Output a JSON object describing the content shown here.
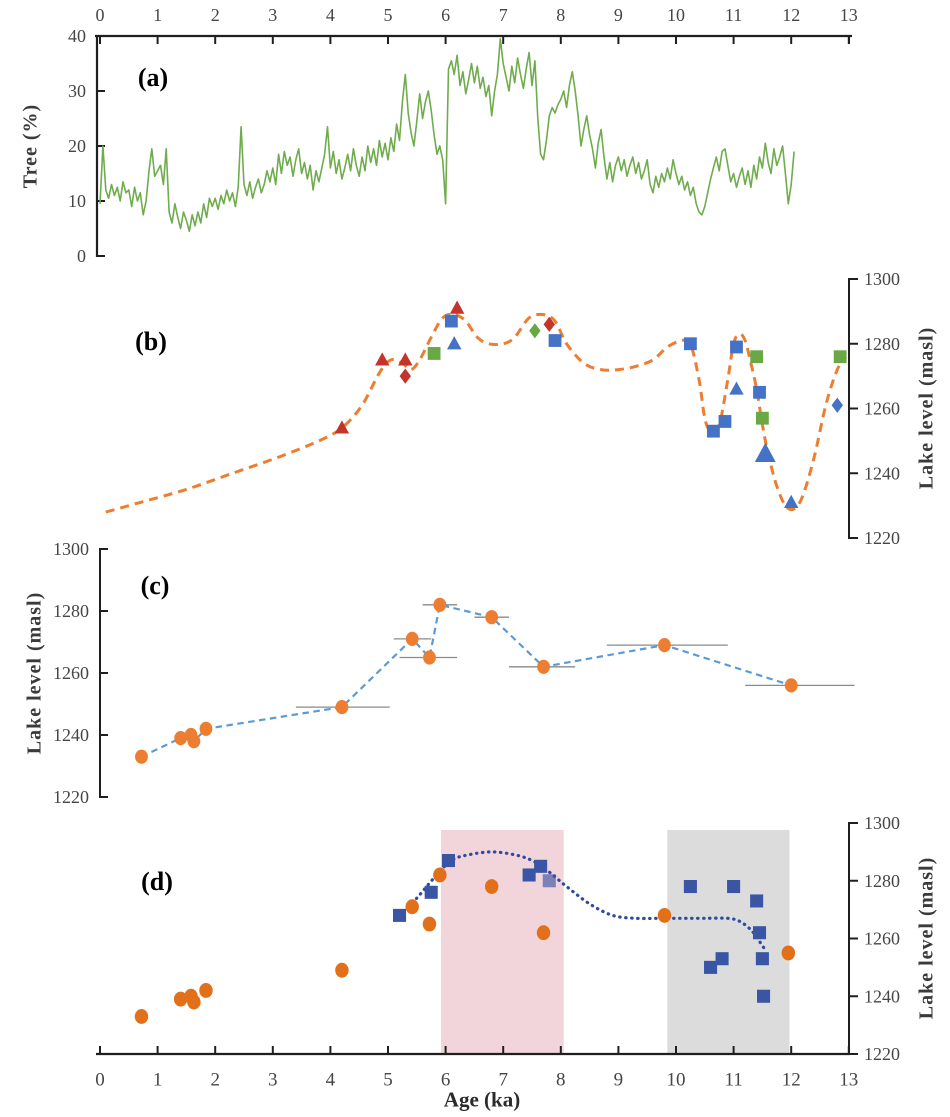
{
  "figure": {
    "panel_labels": {
      "a": "(a)",
      "b": "(b)",
      "c": "(c)",
      "d": "(d)"
    },
    "axis_titles": {
      "tree": "Tree (%)",
      "lake_b": "Lake level (masl)",
      "lake_c": "Lake level (masl)",
      "lake_d": "Lake level (masl)",
      "age": "Age (ka)"
    }
  },
  "colors": {
    "tree_line": "#6FAC4D",
    "orange_curve": "#ED7D31",
    "red_marker": "#C3342B",
    "blue_marker": "#4472C4",
    "green_marker": "#69A844",
    "c_line": "#5B9BD5",
    "c_marker": "#ED7D31",
    "errorbar": "#8a8a8a",
    "d_dotted": "#2F4B9E",
    "d_square": "#3A55A4",
    "d_circle": "#E2701B",
    "pink_band": "#F2D5DA",
    "gray_band": "#DCDCDC",
    "axis": "#1f1f1f",
    "tick_text": "#464646"
  },
  "chart_data": [
    {
      "panel": "a",
      "type": "line",
      "ylabel": "Tree (%)",
      "xlabel_top": "Age (ka)",
      "xlim": [
        0,
        13
      ],
      "ylim": [
        0,
        40
      ],
      "x_axis": "top",
      "y_axis": "left",
      "xticks": [
        0,
        1,
        2,
        3,
        4,
        5,
        6,
        7,
        8,
        9,
        10,
        11,
        12,
        13
      ],
      "yticks": [
        0,
        10,
        20,
        30,
        40
      ],
      "series": [
        {
          "name": "tree_percent",
          "x_start": 0,
          "x_step": 0.05,
          "values": [
            9.5,
            20,
            12,
            10.5,
            13,
            11,
            12.5,
            10,
            13.5,
            11.5,
            12,
            9,
            12.5,
            10,
            11.5,
            7.5,
            10,
            15.5,
            19.5,
            14.5,
            15.5,
            16.5,
            13,
            19.5,
            8,
            6,
            9.5,
            7,
            5,
            8,
            6.5,
            4.5,
            7.5,
            5.5,
            8,
            6,
            9.5,
            7,
            10.5,
            9,
            10.5,
            8.5,
            11,
            9.5,
            12,
            10,
            11.5,
            9,
            12.5,
            23.5,
            13,
            11,
            13.5,
            10.5,
            12.5,
            14,
            11.5,
            13,
            15.5,
            13.5,
            16,
            13,
            18.5,
            15,
            19,
            16.5,
            18,
            14.5,
            17.5,
            19.5,
            15,
            17,
            14,
            16.5,
            12,
            15.5,
            13.5,
            16,
            18.5,
            23.5,
            16,
            19,
            15,
            17.5,
            14,
            16,
            18.5,
            15.5,
            19.5,
            16.5,
            14.5,
            18,
            15.5,
            20,
            17,
            19.5,
            16.5,
            21,
            18,
            20.5,
            17.5,
            21.5,
            19,
            24,
            21,
            28,
            33,
            26,
            22.5,
            20,
            24.5,
            29.5,
            25,
            28,
            30,
            26.5,
            22,
            18.5,
            20,
            17.5,
            9.5,
            34,
            35.5,
            33,
            36.5,
            31,
            33.5,
            29.5,
            32,
            35,
            31.5,
            34.5,
            30.5,
            32.5,
            29,
            31,
            25.5,
            30,
            33,
            39.5,
            35,
            32.5,
            30,
            34.5,
            31.5,
            36,
            33,
            30.5,
            34,
            37,
            31,
            35.5,
            25,
            18.5,
            17.5,
            21,
            25.5,
            27,
            26,
            27.5,
            28.5,
            30,
            27,
            31,
            33.5,
            30,
            25.5,
            20,
            23,
            25.5,
            22,
            19.5,
            16,
            20.5,
            23,
            18,
            14,
            17,
            13.5,
            16.5,
            18,
            15.5,
            17.5,
            14.5,
            16.5,
            18,
            15,
            17,
            14,
            15.5,
            17.5,
            13,
            11.5,
            14.5,
            12.5,
            15,
            13.5,
            16,
            14,
            17.5,
            15,
            13,
            14.5,
            12,
            13.5,
            11,
            12.5,
            9.5,
            8,
            7.5,
            9,
            11.5,
            14,
            16,
            18,
            15.5,
            19,
            19.5,
            16.5,
            13.5,
            15,
            12.5,
            14.5,
            16,
            13,
            15.5,
            12.5,
            16.5,
            14,
            18,
            16,
            20.5,
            17,
            15,
            19.5,
            16.5,
            18,
            20,
            15,
            9.5,
            13,
            19
          ]
        }
      ]
    },
    {
      "panel": "b",
      "type": "scatter",
      "ylabel": "Lake level (masl)",
      "xlim": [
        0,
        13
      ],
      "ylim": [
        1220,
        1300
      ],
      "y_axis": "right",
      "yticks": [
        1220,
        1240,
        1260,
        1280,
        1300
      ],
      "curve": {
        "name": "lake-level-reconstruction",
        "style": "dashed",
        "color_key": "orange_curve",
        "points": [
          [
            0.1,
            1228
          ],
          [
            0.7,
            1231
          ],
          [
            1.5,
            1235
          ],
          [
            2.3,
            1240
          ],
          [
            3.1,
            1245
          ],
          [
            3.8,
            1250
          ],
          [
            4.2,
            1254
          ],
          [
            4.55,
            1261
          ],
          [
            4.85,
            1271
          ],
          [
            5.05,
            1275
          ],
          [
            5.25,
            1274
          ],
          [
            5.4,
            1272
          ],
          [
            5.55,
            1275
          ],
          [
            5.75,
            1282
          ],
          [
            5.95,
            1288
          ],
          [
            6.15,
            1289
          ],
          [
            6.35,
            1287
          ],
          [
            6.55,
            1282
          ],
          [
            6.75,
            1280
          ],
          [
            7.0,
            1280
          ],
          [
            7.2,
            1282
          ],
          [
            7.45,
            1288
          ],
          [
            7.7,
            1289
          ],
          [
            7.9,
            1287
          ],
          [
            8.1,
            1280
          ],
          [
            8.4,
            1274
          ],
          [
            8.7,
            1272
          ],
          [
            9.0,
            1272
          ],
          [
            9.3,
            1273
          ],
          [
            9.6,
            1275
          ],
          [
            9.85,
            1279
          ],
          [
            10.1,
            1281
          ],
          [
            10.25,
            1280
          ],
          [
            10.4,
            1269
          ],
          [
            10.5,
            1257
          ],
          [
            10.6,
            1253
          ],
          [
            10.75,
            1255
          ],
          [
            10.9,
            1269
          ],
          [
            11.0,
            1280
          ],
          [
            11.1,
            1283
          ],
          [
            11.2,
            1281
          ],
          [
            11.3,
            1274
          ],
          [
            11.4,
            1266
          ],
          [
            11.5,
            1255
          ],
          [
            11.6,
            1246
          ],
          [
            11.75,
            1236
          ],
          [
            11.9,
            1230
          ],
          [
            12.05,
            1229
          ],
          [
            12.2,
            1233
          ],
          [
            12.4,
            1245
          ],
          [
            12.6,
            1261
          ],
          [
            12.8,
            1272
          ],
          [
            12.95,
            1276
          ]
        ]
      },
      "marker_series": [
        {
          "name": "red-triangle",
          "shape": "triangle",
          "color_key": "red_marker",
          "points": [
            [
              4.2,
              1254
            ],
            [
              4.9,
              1275
            ],
            [
              5.3,
              1275
            ],
            [
              6.2,
              1291
            ]
          ]
        },
        {
          "name": "red-diamond",
          "shape": "diamond",
          "color_key": "red_marker",
          "points": [
            [
              5.3,
              1270
            ],
            [
              7.8,
              1286
            ]
          ]
        },
        {
          "name": "green-square",
          "shape": "square",
          "color_key": "green_marker",
          "points": [
            [
              5.8,
              1277
            ],
            [
              11.4,
              1276
            ],
            [
              11.5,
              1257
            ],
            [
              12.85,
              1276
            ]
          ]
        },
        {
          "name": "green-diamond",
          "shape": "diamond",
          "color_key": "green_marker",
          "points": [
            [
              7.55,
              1284
            ]
          ]
        },
        {
          "name": "blue-square",
          "shape": "square",
          "color_key": "blue_marker",
          "points": [
            [
              6.1,
              1287
            ],
            [
              7.9,
              1281
            ],
            [
              10.25,
              1280
            ],
            [
              10.65,
              1253
            ],
            [
              10.85,
              1256
            ],
            [
              11.05,
              1279
            ],
            [
              11.45,
              1265
            ]
          ]
        },
        {
          "name": "blue-triangle",
          "shape": "triangle",
          "color_key": "blue_marker",
          "points": [
            [
              6.15,
              1280
            ],
            [
              11.05,
              1266
            ],
            [
              11.55,
              1246,
              1.45
            ],
            [
              12.0,
              1231
            ]
          ]
        },
        {
          "name": "blue-diamond",
          "shape": "diamond",
          "color_key": "blue_marker",
          "points": [
            [
              12.8,
              1261
            ]
          ]
        }
      ]
    },
    {
      "panel": "c",
      "type": "scatter",
      "ylabel": "Lake level (masl)",
      "xlim": [
        0,
        13
      ],
      "ylim": [
        1220,
        1300
      ],
      "y_axis": "left",
      "yticks": [
        1220,
        1240,
        1260,
        1280,
        1300
      ],
      "line_style": "dashed",
      "points": [
        {
          "age": 0.72,
          "level": 1233
        },
        {
          "age": 1.4,
          "level": 1239
        },
        {
          "age": 1.58,
          "level": 1240
        },
        {
          "age": 1.63,
          "level": 1238
        },
        {
          "age": 1.84,
          "level": 1242
        },
        {
          "age": 4.2,
          "level": 1249,
          "bar": [
            3.4,
            5.03
          ]
        },
        {
          "age": 5.42,
          "level": 1271,
          "bar": [
            5.1,
            5.75
          ]
        },
        {
          "age": 5.72,
          "level": 1265,
          "bar": [
            5.2,
            6.2
          ]
        },
        {
          "age": 5.9,
          "level": 1282,
          "bar": [
            5.6,
            6.2
          ]
        },
        {
          "age": 6.8,
          "level": 1278,
          "bar": [
            6.5,
            7.1
          ]
        },
        {
          "age": 7.7,
          "level": 1262,
          "bar": [
            7.1,
            8.25
          ]
        },
        {
          "age": 9.8,
          "level": 1269,
          "bar": [
            8.8,
            10.9
          ]
        },
        {
          "age": 12.0,
          "level": 1256,
          "bar": [
            11.2,
            13.1
          ]
        }
      ]
    },
    {
      "panel": "d",
      "type": "scatter",
      "xlabel": "Age (ka)",
      "ylabel": "Lake level (masl)",
      "xlim": [
        0,
        13
      ],
      "ylim": [
        1220,
        1300
      ],
      "x_axis": "bottom",
      "y_axis": "right",
      "xticks": [
        0,
        1,
        2,
        3,
        4,
        5,
        6,
        7,
        8,
        9,
        10,
        11,
        12,
        13
      ],
      "yticks": [
        1220,
        1240,
        1260,
        1280,
        1300
      ],
      "bands": [
        {
          "name": "pink-band",
          "color_key": "pink_band",
          "from_age": 5.92,
          "to_age": 8.05
        },
        {
          "name": "gray-band",
          "color_key": "gray_band",
          "from_age": 9.85,
          "to_age": 11.97
        }
      ],
      "dotted_curve": {
        "name": "lake-level-trend",
        "color_key": "d_dotted",
        "points": [
          [
            5.2,
            1268
          ],
          [
            5.5,
            1274
          ],
          [
            5.8,
            1281
          ],
          [
            6.1,
            1287
          ],
          [
            6.4,
            1289
          ],
          [
            6.8,
            1290
          ],
          [
            7.2,
            1289
          ],
          [
            7.5,
            1287
          ],
          [
            7.8,
            1283
          ],
          [
            8.1,
            1278
          ],
          [
            8.5,
            1272
          ],
          [
            8.9,
            1268
          ],
          [
            9.3,
            1267
          ],
          [
            9.7,
            1267
          ],
          [
            10.1,
            1267
          ],
          [
            10.5,
            1267
          ],
          [
            10.9,
            1267
          ],
          [
            11.1,
            1266
          ],
          [
            11.3,
            1263
          ],
          [
            11.45,
            1259
          ],
          [
            11.55,
            1256
          ]
        ]
      },
      "circle_series": {
        "name": "orange-circle",
        "color_key": "d_circle",
        "points": [
          [
            0.72,
            1233
          ],
          [
            1.4,
            1239
          ],
          [
            1.58,
            1240
          ],
          [
            1.63,
            1238
          ],
          [
            1.84,
            1242
          ],
          [
            4.2,
            1249
          ],
          [
            5.42,
            1271
          ],
          [
            5.72,
            1265
          ],
          [
            5.9,
            1282
          ],
          [
            6.8,
            1278
          ],
          [
            7.7,
            1262
          ],
          [
            9.8,
            1268
          ],
          [
            11.95,
            1255
          ]
        ]
      },
      "square_series": {
        "name": "blue-square",
        "color_key": "d_square",
        "points": [
          [
            5.2,
            1268
          ],
          [
            5.75,
            1276
          ],
          [
            6.05,
            1287
          ],
          [
            7.45,
            1282
          ],
          [
            7.65,
            1285
          ],
          [
            7.8,
            1280,
            0.65
          ],
          [
            10.25,
            1278
          ],
          [
            10.6,
            1250
          ],
          [
            10.8,
            1253
          ],
          [
            11.0,
            1278
          ],
          [
            11.4,
            1273
          ],
          [
            11.45,
            1262
          ],
          [
            11.5,
            1253
          ],
          [
            11.52,
            1240
          ]
        ]
      }
    }
  ]
}
